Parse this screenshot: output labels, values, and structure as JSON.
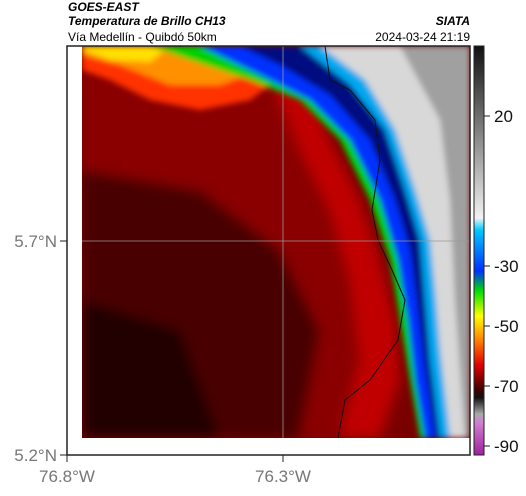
{
  "header": {
    "satellite": "GOES-EAST",
    "product": "Temperatura de Brillo CH13",
    "source": "SIATA",
    "route": "Vía Medellín - Quibdó 50km",
    "timestamp": "2024-03-24 21:19"
  },
  "map": {
    "lat_labels": [
      "5.7°N",
      "5.2°N"
    ],
    "lon_labels": [
      "76.8°W",
      "76.3°W"
    ]
  },
  "colorbar": {
    "ticks": [
      20,
      -30,
      -50,
      -70,
      -90
    ]
  }
}
